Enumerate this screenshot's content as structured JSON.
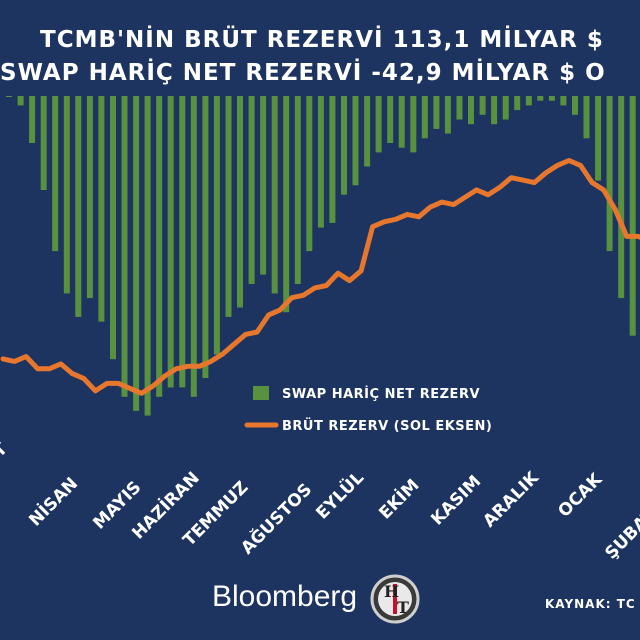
{
  "chart_data": {
    "type": "bar+line",
    "title_line1": "TCMB'NİN BRÜT REZERVİ 113,1 MİLYAR $",
    "title_line2": "SWAP HARİÇ NET REZERVİ -42,9 MİLYAR $ O",
    "months": [
      "MART",
      "NİSAN",
      "MAYIS",
      "HAZİRAN",
      "TEMMUZ",
      "AĞUSTOS",
      "EYLÜL",
      "EKİM",
      "KASIM",
      "ARALIK",
      "OCAK",
      "ŞUBAT"
    ],
    "series": [
      {
        "name": "SWAP HARİÇ NET REZERV",
        "kind": "bar",
        "color": "#58923f",
        "values": [
          0.0,
          -0.02,
          -0.1,
          -0.2,
          -0.33,
          -0.42,
          -0.47,
          -0.43,
          -0.48,
          -0.56,
          -0.64,
          -0.67,
          -0.68,
          -0.64,
          -0.62,
          -0.62,
          -0.64,
          -0.6,
          -0.55,
          -0.47,
          -0.45,
          -0.4,
          -0.38,
          -0.42,
          -0.46,
          -0.4,
          -0.33,
          -0.28,
          -0.27,
          -0.21,
          -0.19,
          -0.15,
          -0.12,
          -0.1,
          -0.11,
          -0.12,
          -0.09,
          -0.07,
          -0.08,
          -0.05,
          -0.06,
          -0.04,
          -0.06,
          -0.05,
          -0.03,
          -0.02,
          -0.01,
          -0.01,
          -0.02,
          -0.04,
          -0.09,
          -0.18,
          -0.33,
          -0.43,
          -0.51,
          -0.55,
          -0.58,
          -0.62,
          -0.61,
          -0.58
        ]
      },
      {
        "name": "BRÜT REZERV (SOL EKSEN)",
        "kind": "line",
        "color": "#e8772e",
        "values": [
          0.29,
          0.28,
          0.3,
          0.25,
          0.25,
          0.27,
          0.23,
          0.21,
          0.16,
          0.19,
          0.19,
          0.17,
          0.15,
          0.18,
          0.22,
          0.25,
          0.26,
          0.26,
          0.28,
          0.31,
          0.35,
          0.39,
          0.4,
          0.47,
          0.49,
          0.54,
          0.55,
          0.58,
          0.59,
          0.64,
          0.61,
          0.65,
          0.83,
          0.85,
          0.86,
          0.88,
          0.87,
          0.91,
          0.93,
          0.92,
          0.95,
          0.98,
          0.96,
          0.99,
          1.03,
          1.02,
          1.01,
          1.05,
          1.08,
          1.1,
          1.08,
          1.01,
          0.98,
          0.9,
          0.79,
          0.79,
          0.77,
          0.765,
          0.76,
          0.77
        ]
      }
    ],
    "legend_placement": "center-right",
    "grid": false
  },
  "footer": {
    "brand": "Bloomberg",
    "source": "KAYNAK: TC"
  },
  "colors": {
    "background": "#1d3460",
    "bars": "#58923f",
    "line": "#e8772e",
    "text": "#ffffff"
  }
}
